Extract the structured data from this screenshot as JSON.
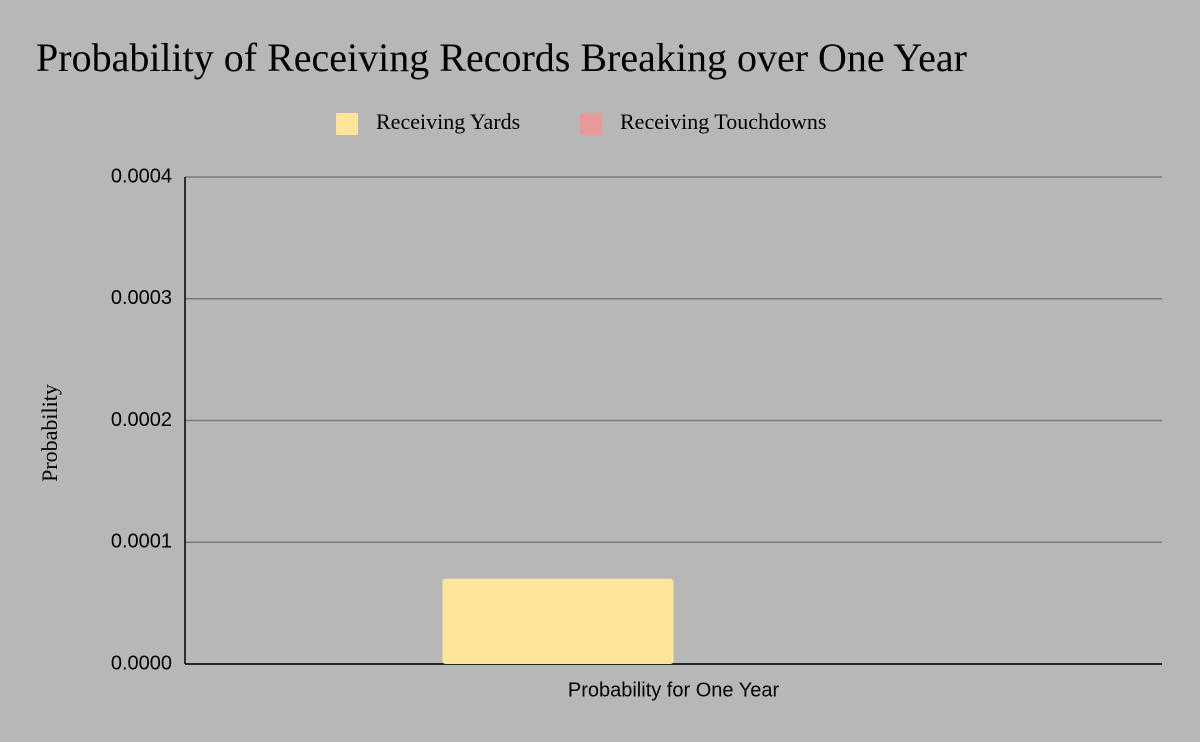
{
  "chart_data": {
    "type": "bar",
    "title": "Probability of Receiving Records Breaking over One Year",
    "y_label": "Probability",
    "categories": [
      "Probability for One Year"
    ],
    "series": [
      {
        "name": "Receiving Yards",
        "color": "#ffe599",
        "values": [
          7e-05
        ]
      },
      {
        "name": "Receiving Touchdowns",
        "color": "#ea9999",
        "values": [
          0
        ]
      }
    ],
    "ylim": [
      0,
      0.0004
    ],
    "yticks": [
      {
        "value": 0,
        "label": "0.0000"
      },
      0.0001,
      0.0002,
      0.0003,
      0.0004
    ],
    "grid": true,
    "legend": "top"
  }
}
